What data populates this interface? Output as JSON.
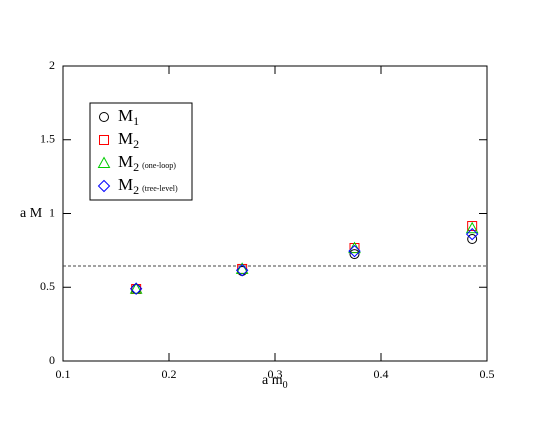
{
  "chart_data": {
    "type": "scatter",
    "xlabel": "a m",
    "xlabel_subscript": "0",
    "ylabel": "a M",
    "x": [
      0.169,
      0.269,
      0.375,
      0.486
    ],
    "series": [
      {
        "name": "M",
        "subscript": "1",
        "color": "#000000",
        "marker": "circle",
        "values": [
          0.488,
          0.61,
          0.725,
          0.827
        ]
      },
      {
        "name": "M",
        "subscript": "2",
        "color": "#ff0000",
        "marker": "square",
        "values": [
          0.488,
          0.624,
          0.766,
          0.915
        ]
      },
      {
        "name": "M",
        "subscript": "2",
        "note": "(one-loop)",
        "color": "#00cc00",
        "marker": "triangle",
        "values": [
          0.49,
          0.625,
          0.765,
          0.9
        ]
      },
      {
        "name": "M",
        "subscript": "2",
        "note": "(tree-level)",
        "color": "#0000ff",
        "marker": "diamond",
        "values": [
          0.49,
          0.615,
          0.745,
          0.86
        ]
      }
    ],
    "hline": 0.644,
    "xlim": [
      0.1,
      0.5
    ],
    "xticks": [
      0.1,
      0.2,
      0.3,
      0.4,
      0.5
    ],
    "ylim": [
      0,
      2
    ],
    "yticks": [
      0,
      0.5,
      1,
      1.5,
      2
    ],
    "legend": "upper-left"
  }
}
